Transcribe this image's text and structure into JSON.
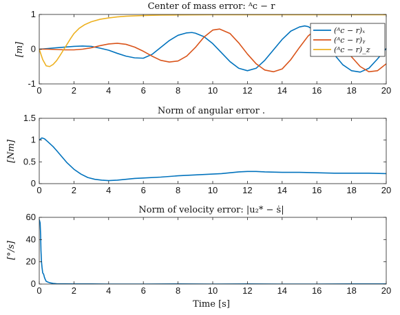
{
  "chart_data": [
    {
      "type": "line",
      "title": "Center of mass error: ᴬc − r",
      "ylabel": "[m]",
      "xlabel": "",
      "xlim": [
        0,
        20
      ],
      "ylim": [
        -1,
        1
      ],
      "xticks": [
        "0",
        "2",
        "4",
        "6",
        "8",
        "10",
        "12",
        "14",
        "16",
        "18",
        "20"
      ],
      "yticks": [
        "-1",
        "0",
        "1"
      ],
      "legend": "top-right",
      "series": [
        {
          "name": "(ᴬc − r)ₓ",
          "color": "#0072BD",
          "x": [
            0,
            0.5,
            1,
            1.5,
            2,
            2.5,
            3,
            3.5,
            4,
            4.5,
            5,
            5.5,
            6,
            6.5,
            7,
            7.5,
            8,
            8.5,
            8.8,
            9,
            9.5,
            10,
            10.5,
            11,
            11.5,
            12,
            12.5,
            13,
            13.5,
            14,
            14.5,
            15,
            15.3,
            15.5,
            16,
            16.5,
            17,
            17.5,
            18,
            18.5,
            19,
            19.5,
            20
          ],
          "y": [
            0,
            0.02,
            0.04,
            0.06,
            0.08,
            0.09,
            0.08,
            0.03,
            -0.03,
            -0.12,
            -0.2,
            -0.25,
            -0.26,
            -0.15,
            0.05,
            0.25,
            0.4,
            0.47,
            0.48,
            0.46,
            0.36,
            0.16,
            -0.1,
            -0.36,
            -0.55,
            -0.62,
            -0.55,
            -0.32,
            -0.02,
            0.28,
            0.52,
            0.64,
            0.67,
            0.65,
            0.5,
            0.2,
            -0.15,
            -0.45,
            -0.62,
            -0.66,
            -0.55,
            -0.28,
            0.02
          ]
        },
        {
          "name": "(ᴬc − r)ᵧ",
          "color": "#D95319",
          "x": [
            0,
            0.5,
            1,
            1.5,
            2,
            2.5,
            3,
            3.5,
            4,
            4.5,
            5,
            5.5,
            6,
            6.5,
            7,
            7.5,
            8,
            8.5,
            9,
            9.5,
            10,
            10.4,
            11,
            11.5,
            12,
            12.5,
            13,
            13.5,
            14,
            14.5,
            15,
            15.5,
            16,
            16.5,
            17,
            17.5,
            18,
            18.5,
            19,
            19.5,
            20
          ],
          "y": [
            0,
            0,
            -0.01,
            -0.02,
            -0.02,
            0,
            0.04,
            0.1,
            0.15,
            0.17,
            0.14,
            0.06,
            -0.06,
            -0.2,
            -0.32,
            -0.37,
            -0.34,
            -0.2,
            0.05,
            0.35,
            0.55,
            0.58,
            0.45,
            0.18,
            -0.14,
            -0.42,
            -0.6,
            -0.65,
            -0.57,
            -0.3,
            0.05,
            0.38,
            0.58,
            0.6,
            0.42,
            0.12,
            -0.22,
            -0.5,
            -0.65,
            -0.62,
            -0.42
          ]
        },
        {
          "name": "(ᴬc − r)_z",
          "color": "#EDB120",
          "x": [
            0,
            0.2,
            0.4,
            0.6,
            0.8,
            1,
            1.2,
            1.4,
            1.6,
            1.8,
            2,
            2.3,
            2.6,
            3,
            3.5,
            4,
            4.5,
            5,
            5.5,
            6,
            7,
            8,
            10,
            12,
            14,
            16,
            18,
            20
          ],
          "y": [
            0,
            -0.3,
            -0.48,
            -0.5,
            -0.44,
            -0.33,
            -0.18,
            -0.02,
            0.14,
            0.3,
            0.45,
            0.6,
            0.7,
            0.79,
            0.86,
            0.9,
            0.93,
            0.95,
            0.96,
            0.97,
            0.98,
            0.985,
            0.99,
            0.99,
            0.99,
            0.99,
            0.99,
            0.99
          ]
        }
      ]
    },
    {
      "type": "line",
      "title": "Norm of angular error .",
      "ylabel": "[Nm]",
      "xlabel": "",
      "xlim": [
        0,
        20
      ],
      "ylim": [
        0,
        1.5
      ],
      "xticks": [
        "0",
        "2",
        "4",
        "6",
        "8",
        "10",
        "12",
        "14",
        "16",
        "18",
        "20"
      ],
      "yticks": [
        "0",
        "0.5",
        "1",
        "1.5"
      ],
      "series": [
        {
          "color": "#0072BD",
          "x": [
            0,
            0.15,
            0.3,
            0.5,
            0.8,
            1,
            1.3,
            1.6,
            2,
            2.4,
            2.8,
            3.2,
            3.6,
            4,
            4.5,
            5,
            5.5,
            6,
            7,
            8,
            9,
            10,
            10.5,
            11,
            11.5,
            12,
            12.5,
            13,
            14,
            15,
            16,
            17,
            18,
            19,
            20
          ],
          "y": [
            1.0,
            1.05,
            1.03,
            0.96,
            0.85,
            0.76,
            0.62,
            0.48,
            0.33,
            0.22,
            0.14,
            0.1,
            0.08,
            0.07,
            0.08,
            0.1,
            0.12,
            0.13,
            0.15,
            0.18,
            0.2,
            0.22,
            0.23,
            0.25,
            0.27,
            0.28,
            0.28,
            0.27,
            0.26,
            0.26,
            0.25,
            0.24,
            0.24,
            0.24,
            0.23
          ]
        }
      ]
    },
    {
      "type": "line",
      "title": "Norm of velocity error: |u₂* − ṡ|",
      "ylabel": "[°/s]",
      "xlabel": "Time [s]",
      "xlim": [
        0,
        20
      ],
      "ylim": [
        0,
        60
      ],
      "xticks": [
        "0",
        "2",
        "4",
        "6",
        "8",
        "10",
        "12",
        "14",
        "16",
        "18",
        "20"
      ],
      "yticks": [
        "0",
        "20",
        "40",
        "60"
      ],
      "series": [
        {
          "color": "#0072BD",
          "x": [
            0,
            0.05,
            0.08,
            0.1,
            0.13,
            0.16,
            0.2,
            0.25,
            0.3,
            0.35,
            0.4,
            0.5,
            0.6,
            0.8,
            1,
            1.5,
            2,
            3,
            4,
            6,
            8,
            10,
            12,
            14,
            16,
            18,
            20
          ],
          "y": [
            58,
            55,
            44,
            30,
            20,
            15,
            10,
            9,
            6,
            4,
            2.5,
            1.8,
            1.2,
            0.6,
            0.3,
            0.2,
            0.1,
            0.1,
            0,
            0,
            0.1,
            0,
            0.1,
            0,
            0,
            0.1,
            0.1
          ]
        }
      ]
    }
  ]
}
